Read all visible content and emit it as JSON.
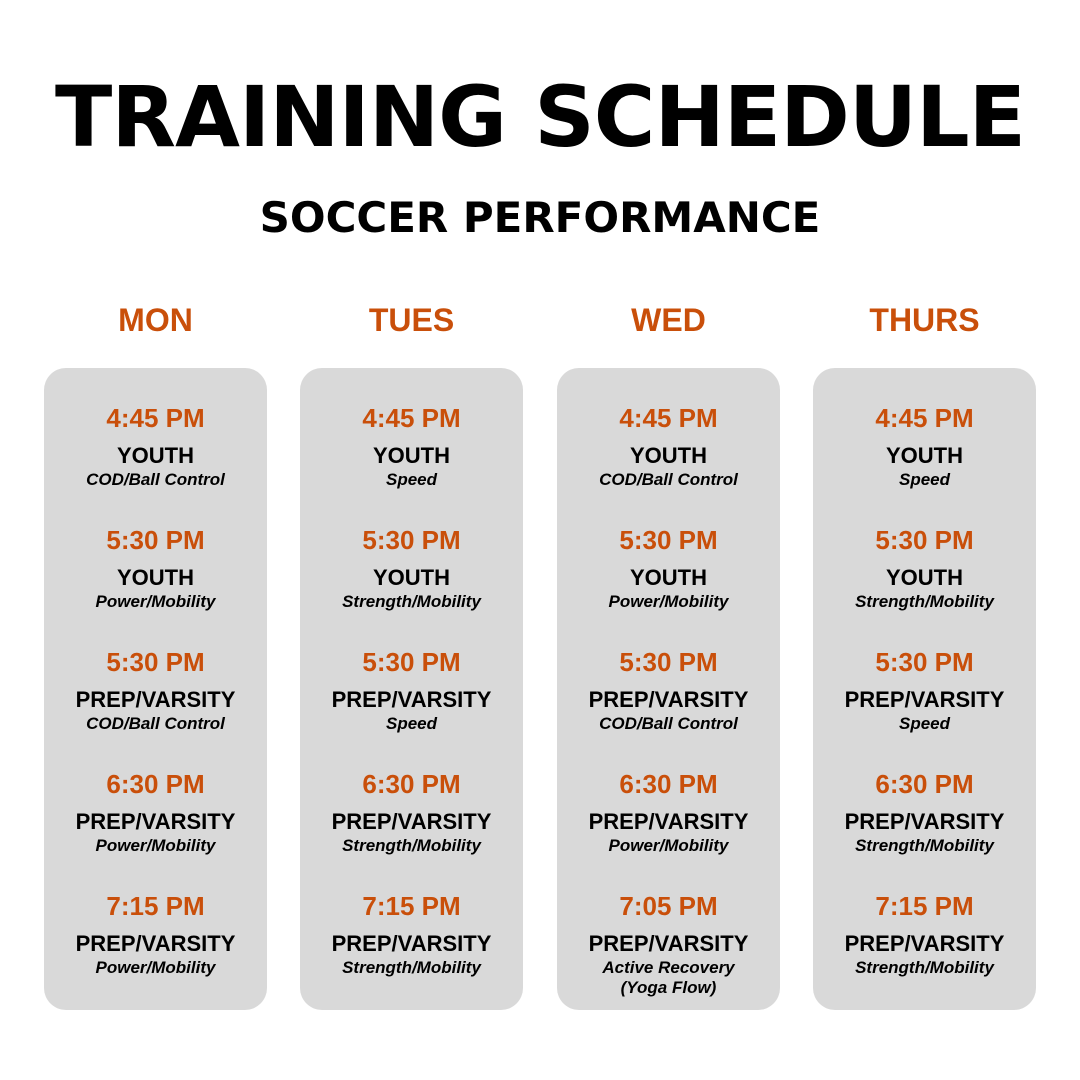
{
  "title": "TRAINING SCHEDULE",
  "subtitle": "SOCCER PERFORMANCE",
  "colors": {
    "accent": "#C94F0A",
    "card": "#D9D9D9"
  },
  "days": [
    {
      "name": "MON",
      "sessions": [
        {
          "time": "4:45 PM",
          "group": "YOUTH",
          "activity": "COD/Ball Control"
        },
        {
          "time": "5:30 PM",
          "group": "YOUTH",
          "activity": "Power/Mobility"
        },
        {
          "time": "5:30 PM",
          "group": "PREP/VARSITY",
          "activity": "COD/Ball Control"
        },
        {
          "time": "6:30 PM",
          "group": "PREP/VARSITY",
          "activity": "Power/Mobility"
        },
        {
          "time": "7:15 PM",
          "group": "PREP/VARSITY",
          "activity": "Power/Mobility"
        }
      ]
    },
    {
      "name": "TUES",
      "sessions": [
        {
          "time": "4:45 PM",
          "group": "YOUTH",
          "activity": "Speed"
        },
        {
          "time": "5:30 PM",
          "group": "YOUTH",
          "activity": "Strength/Mobility"
        },
        {
          "time": "5:30 PM",
          "group": "PREP/VARSITY",
          "activity": "Speed"
        },
        {
          "time": "6:30 PM",
          "group": "PREP/VARSITY",
          "activity": "Strength/Mobility"
        },
        {
          "time": "7:15 PM",
          "group": "PREP/VARSITY",
          "activity": "Strength/Mobility"
        }
      ]
    },
    {
      "name": "WED",
      "sessions": [
        {
          "time": "4:45 PM",
          "group": "YOUTH",
          "activity": "COD/Ball Control"
        },
        {
          "time": "5:30 PM",
          "group": "YOUTH",
          "activity": "Power/Mobility"
        },
        {
          "time": "5:30 PM",
          "group": "PREP/VARSITY",
          "activity": "COD/Ball Control"
        },
        {
          "time": "6:30 PM",
          "group": "PREP/VARSITY",
          "activity": "Power/Mobility"
        },
        {
          "time": "7:05 PM",
          "group": "PREP/VARSITY",
          "activity": "Active Recovery",
          "activity_note": "(Yoga Flow)"
        }
      ]
    },
    {
      "name": "THURS",
      "sessions": [
        {
          "time": "4:45 PM",
          "group": "YOUTH",
          "activity": "Speed"
        },
        {
          "time": "5:30 PM",
          "group": "YOUTH",
          "activity": "Strength/Mobility"
        },
        {
          "time": "5:30 PM",
          "group": "PREP/VARSITY",
          "activity": "Speed"
        },
        {
          "time": "6:30 PM",
          "group": "PREP/VARSITY",
          "activity": "Strength/Mobility"
        },
        {
          "time": "7:15 PM",
          "group": "PREP/VARSITY",
          "activity": "Strength/Mobility"
        }
      ]
    }
  ]
}
